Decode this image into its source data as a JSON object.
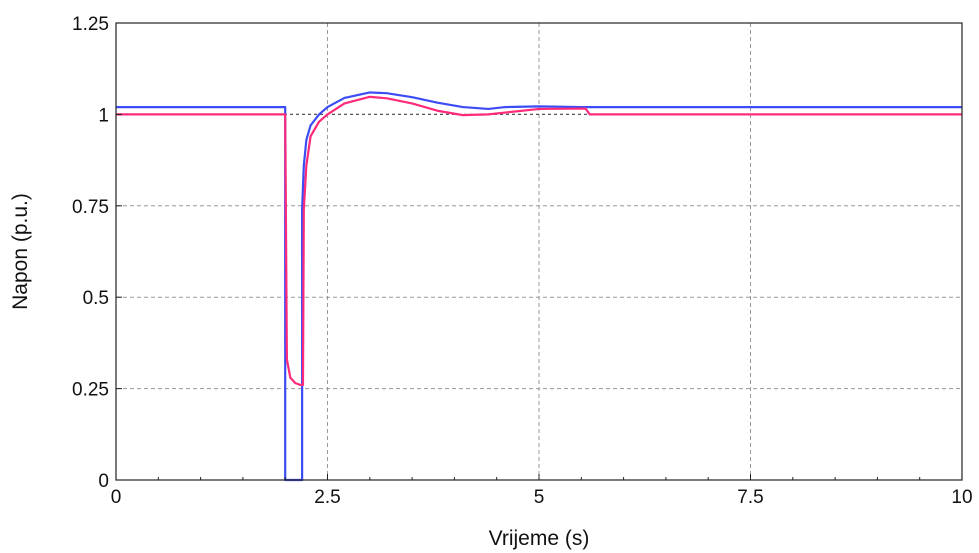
{
  "chart_data": {
    "type": "line",
    "title": "",
    "xlabel": "Vrijeme (s)",
    "ylabel": "Napon (p.u.)",
    "xlim": [
      0,
      10
    ],
    "ylim": [
      0,
      1.25
    ],
    "xticks": [
      0,
      2.5,
      5,
      7.5,
      10
    ],
    "xtick_labels": [
      "0",
      "2.5",
      "5",
      "7.5",
      "10"
    ],
    "yticks": [
      0,
      0.25,
      0.5,
      0.75,
      1,
      1.25
    ],
    "ytick_labels": [
      "0",
      "0.25",
      "0.5",
      "0.75",
      "1",
      "1.25"
    ],
    "grid": true,
    "reference_line": {
      "y": 1.0,
      "style": "dotted",
      "color": "#555555"
    },
    "series": [
      {
        "color": "#3b4cf5",
        "x": [
          0,
          1.98,
          2.0,
          2.0,
          2.2,
          2.2,
          2.22,
          2.25,
          2.3,
          2.4,
          2.5,
          2.7,
          3.0,
          3.2,
          3.5,
          3.8,
          4.1,
          4.4,
          4.6,
          5.0,
          5.5,
          6.0,
          10.0
        ],
        "y": [
          1.02,
          1.02,
          1.02,
          0.0,
          0.0,
          0.74,
          0.86,
          0.93,
          0.97,
          1.0,
          1.02,
          1.045,
          1.06,
          1.058,
          1.047,
          1.032,
          1.02,
          1.015,
          1.02,
          1.022,
          1.02,
          1.02,
          1.02
        ]
      },
      {
        "color": "#ff2a7a",
        "x": [
          0,
          1.99,
          2.0,
          2.02,
          2.06,
          2.12,
          2.18,
          2.21,
          2.22,
          2.25,
          2.3,
          2.4,
          2.5,
          2.7,
          3.0,
          3.2,
          3.5,
          3.8,
          4.1,
          4.4,
          4.6,
          5.0,
          5.55,
          5.6,
          10.0
        ],
        "y": [
          1.0,
          1.0,
          1.0,
          0.33,
          0.28,
          0.265,
          0.26,
          0.26,
          0.74,
          0.86,
          0.94,
          0.98,
          1.0,
          1.03,
          1.048,
          1.044,
          1.03,
          1.01,
          0.998,
          1.0,
          1.005,
          1.015,
          1.016,
          1.0,
          1.0
        ]
      }
    ]
  }
}
